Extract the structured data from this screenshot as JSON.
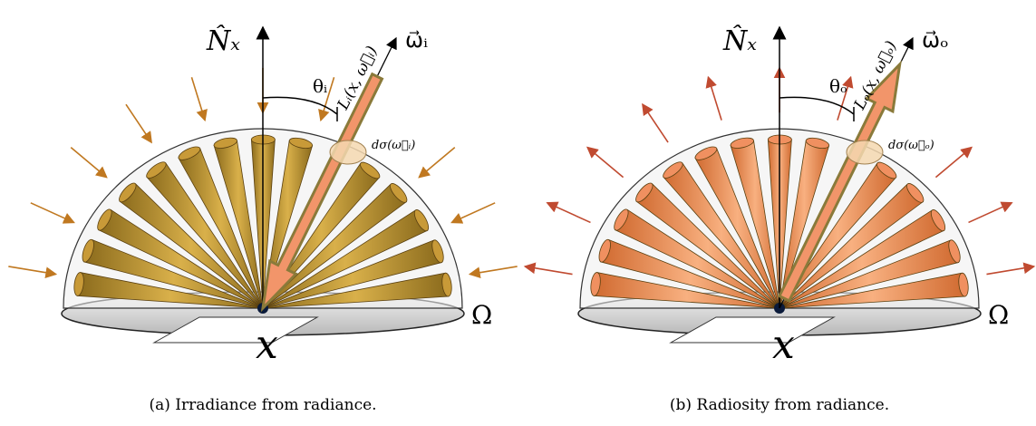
{
  "panels": [
    {
      "normal": "N̂ₓ",
      "direction": "ω⃗ᵢ",
      "angle": "θᵢ",
      "radiance": "Lᵢ(x, ω⃗ᵢ)",
      "solid_angle": "dσ(ω⃗ᵢ)",
      "point": "x",
      "hemisphere": "Ω",
      "caption": "(a) Irradiance from radiance."
    },
    {
      "normal": "N̂ₓ",
      "direction": "ω⃗ₒ",
      "angle": "θₒ",
      "radiance": "Lₒ(x, ω⃗ₒ)",
      "solid_angle": "dσ(ω⃗ₒ)",
      "point": "x",
      "hemisphere": "Ω",
      "caption": "(b) Radiosity from radiance."
    }
  ]
}
